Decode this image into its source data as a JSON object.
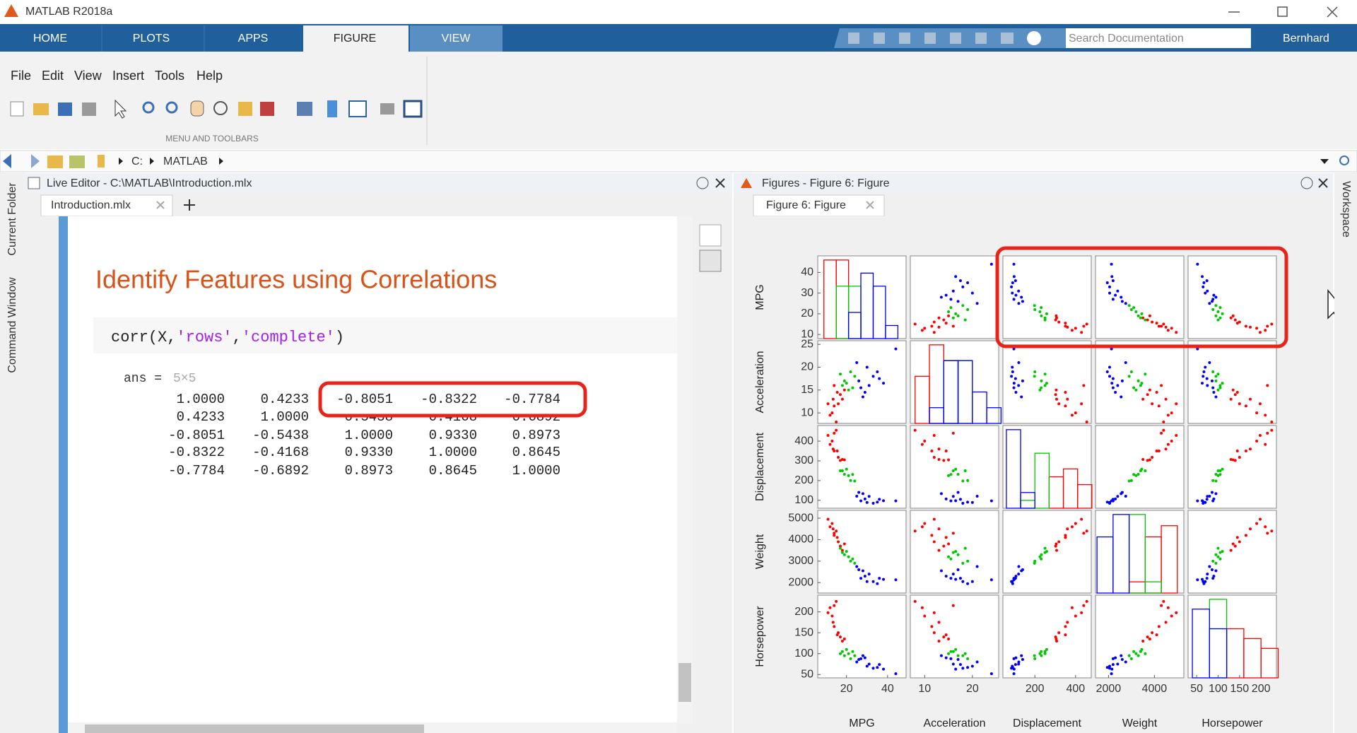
{
  "window": {
    "title": "MATLAB R2018a"
  },
  "ribbon": {
    "tabs": [
      "HOME",
      "PLOTS",
      "APPS",
      "FIGURE",
      "VIEW"
    ],
    "search": "Search Documentation",
    "user": "Bernhard"
  },
  "menu": [
    "File",
    "Edit",
    "View",
    "Insert",
    "Tools",
    "Help"
  ],
  "toolstrip_section": "MENU AND TOOLBARS",
  "address": [
    "C:",
    "MATLAB"
  ],
  "sidebar_left": [
    "Current Folder",
    "Command Window"
  ],
  "sidebar_right": [
    "Workspace"
  ],
  "editor": {
    "header": "Live Editor - C:\\MATLAB\\Introduction.mlx",
    "tab": "Introduction.mlx",
    "heading": "Identify Features using Correlations",
    "code": [
      "corr(X,",
      "'rows'",
      ",",
      "'complete'",
      ")"
    ],
    "output": {
      "name": "ans =",
      "size": "5×5",
      "rows": [
        [
          "1.0000",
          "0.4233",
          "-0.8051",
          "-0.8322",
          "-0.7784"
        ],
        [
          "0.4233",
          "1.0000",
          "-0.5438",
          "-0.4168",
          "-0.6892"
        ],
        [
          "-0.8051",
          "-0.5438",
          "1.0000",
          "0.9330",
          "0.8973"
        ],
        [
          "-0.8322",
          "-0.4168",
          "0.9330",
          "1.0000",
          "0.8645"
        ],
        [
          "-0.7784",
          "-0.6892",
          "0.8973",
          "0.8645",
          "1.0000"
        ]
      ]
    }
  },
  "figure_panel": {
    "header": "Figures - Figure 6: Figure",
    "tab": "Figure 6: Figure"
  },
  "chart_data": {
    "type": "scattermatrix",
    "colors": [
      "#ff0000",
      "#00c800",
      "#0000ff"
    ],
    "variables": [
      {
        "name": "MPG",
        "xlim": [
          6,
          49
        ],
        "xticks": [
          20,
          40
        ],
        "ylim": [
          8,
          48
        ],
        "yticks": [
          10,
          20,
          30,
          40
        ],
        "bins": [
          9,
          15,
          21,
          27,
          33,
          39,
          45
        ],
        "counts": [
          [
            6,
            6,
            0,
            0,
            0,
            0
          ],
          [
            0,
            4,
            4,
            0,
            0,
            0
          ],
          [
            0,
            0,
            2,
            5,
            4,
            1
          ]
        ]
      },
      {
        "name": "Acceleration",
        "xlim": [
          7,
          25.5
        ],
        "xticks": [
          10,
          20
        ],
        "ylim": [
          7.7,
          25.8
        ],
        "yticks": [
          10,
          15,
          20,
          25
        ],
        "bins": [
          8,
          11,
          14,
          17,
          20,
          23,
          26
        ],
        "counts": [
          [
            3,
            5,
            4,
            0,
            0,
            0
          ],
          [
            0,
            0,
            4,
            4,
            0,
            0
          ],
          [
            0,
            1,
            4,
            4,
            2,
            1
          ]
        ]
      },
      {
        "name": "Displacement",
        "xlim": [
          43,
          477
        ],
        "xticks": [
          200,
          400
        ],
        "ylim": [
          60,
          479
        ],
        "yticks": [
          100,
          200,
          300,
          400
        ],
        "bins": [
          60,
          130,
          200,
          270,
          340,
          410,
          480
        ],
        "counts": [
          [
            0,
            0,
            0,
            4,
            5,
            3
          ],
          [
            0,
            1,
            7,
            0,
            0,
            0
          ],
          [
            10,
            2,
            0,
            0,
            0,
            0
          ]
        ]
      },
      {
        "name": "Weight",
        "xlim": [
          1434,
          5282
        ],
        "xticks": [
          2000,
          4000
        ],
        "ylim": [
          1514,
          5364
        ],
        "yticks": [
          2000,
          3000,
          4000,
          5000
        ],
        "bins": [
          1500,
          2200,
          2900,
          3600,
          4300,
          5000
        ],
        "counts": [
          [
            0,
            0,
            1,
            5,
            6
          ],
          [
            0,
            0,
            7,
            1,
            0
          ],
          [
            5,
            7,
            0,
            0,
            0
          ]
        ]
      },
      {
        "name": "Horsepower",
        "xlim": [
          30,
          236
        ],
        "xticks": [
          50,
          100,
          150,
          200
        ],
        "ylim": [
          42,
          240
        ],
        "yticks": [
          50,
          100,
          150,
          200
        ],
        "bins": [
          40,
          80,
          120,
          160,
          200,
          240
        ],
        "counts": [
          [
            0,
            0,
            5,
            4,
            3
          ],
          [
            0,
            8,
            0,
            0,
            0
          ],
          [
            7,
            5,
            0,
            0,
            0
          ]
        ]
      }
    ],
    "cars": [
      [
        15,
        8,
        455,
        4400,
        225,
        0
      ],
      [
        13,
        10,
        400,
        4750,
        190,
        0
      ],
      [
        14,
        11.5,
        350,
        4200,
        165,
        0
      ],
      [
        16,
        12,
        318,
        3900,
        150,
        0
      ],
      [
        11,
        12,
        429,
        4950,
        198,
        0
      ],
      [
        18,
        13,
        307,
        3500,
        130,
        0
      ],
      [
        12,
        9.5,
        383,
        4600,
        210,
        0
      ],
      [
        17,
        14,
        302,
        3700,
        140,
        0
      ],
      [
        15.5,
        14.5,
        350,
        4100,
        145,
        0
      ],
      [
        13.5,
        13,
        360,
        4500,
        175,
        0
      ],
      [
        19,
        15,
        305,
        3800,
        135,
        0
      ],
      [
        14,
        16,
        440,
        4300,
        215,
        0
      ],
      [
        18,
        16,
        250,
        3400,
        105,
        1
      ],
      [
        21,
        15,
        225,
        3200,
        100,
        1
      ],
      [
        19,
        17,
        232,
        3300,
        95,
        1
      ],
      [
        22,
        19,
        200,
        3000,
        88,
        1
      ],
      [
        20,
        16.5,
        258,
        3450,
        110,
        1
      ],
      [
        24,
        18,
        198,
        2900,
        95,
        1
      ],
      [
        17,
        18.5,
        250,
        3600,
        100,
        1
      ],
      [
        23,
        15.5,
        231,
        3100,
        105,
        1
      ],
      [
        27,
        15.5,
        97,
        2200,
        88,
        2
      ],
      [
        31,
        16,
        120,
        2400,
        75,
        2
      ],
      [
        26,
        17,
        140,
        2600,
        86,
        2
      ],
      [
        35,
        19,
        91,
        1950,
        67,
        2
      ],
      [
        29,
        14.5,
        107,
        2300,
        90,
        2
      ],
      [
        33,
        18,
        85,
        2050,
        65,
        2
      ],
      [
        38,
        16.5,
        98,
        2150,
        63,
        2
      ],
      [
        25,
        21,
        121,
        2750,
        80,
        2
      ],
      [
        44,
        24,
        97,
        2130,
        52,
        2
      ],
      [
        30,
        20,
        89,
        2050,
        70,
        2
      ],
      [
        28,
        13.5,
        134,
        2550,
        95,
        2
      ],
      [
        36,
        17.5,
        105,
        2200,
        74,
        2
      ]
    ]
  }
}
